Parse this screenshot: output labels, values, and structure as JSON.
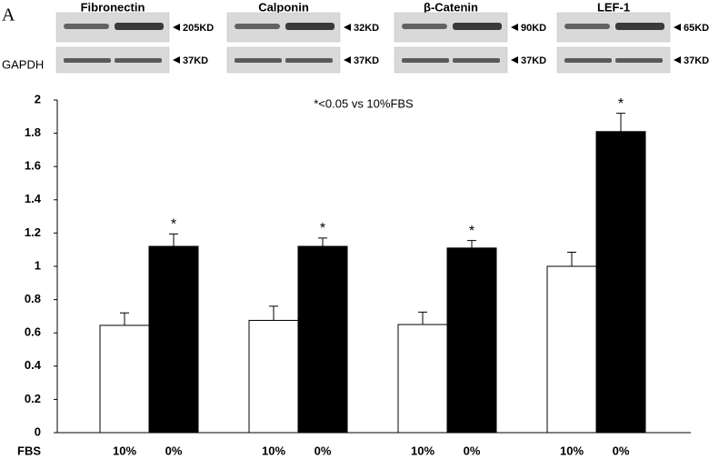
{
  "panel_label": "A",
  "blots": {
    "control_name": "GAPDH",
    "items": [
      {
        "name": "Fibronectin",
        "band": "205KD",
        "control": "37KD"
      },
      {
        "name": "Calponin",
        "band": "32KD",
        "control": "37KD"
      },
      {
        "name": "β-Catenin",
        "band": "90KD",
        "control": "37KD"
      },
      {
        "name": "LEF-1",
        "band": "65KD",
        "control": "37KD"
      }
    ]
  },
  "chart_data": {
    "type": "bar",
    "annotation": "*<0.05 vs 10%FBS",
    "x_label": "FBS",
    "categories": [
      "Fibronectin",
      "Calponin",
      "β-Catenin",
      "LEF-1"
    ],
    "series": [
      {
        "name": "10%",
        "color": "#ffffff",
        "values": [
          0.645,
          0.675,
          0.65,
          1.0
        ],
        "errors": [
          0.075,
          0.085,
          0.075,
          0.085
        ]
      },
      {
        "name": "0%",
        "color": "#000000",
        "values": [
          1.12,
          1.12,
          1.11,
          1.81
        ],
        "errors": [
          0.075,
          0.05,
          0.045,
          0.11
        ],
        "markers": [
          "*",
          "*",
          "*",
          "*"
        ]
      }
    ],
    "ylim": [
      0,
      2
    ],
    "yticks": [
      0,
      0.2,
      0.4,
      0.6,
      0.8,
      1,
      1.2,
      1.4,
      1.6,
      1.8,
      2
    ],
    "grid": false
  }
}
